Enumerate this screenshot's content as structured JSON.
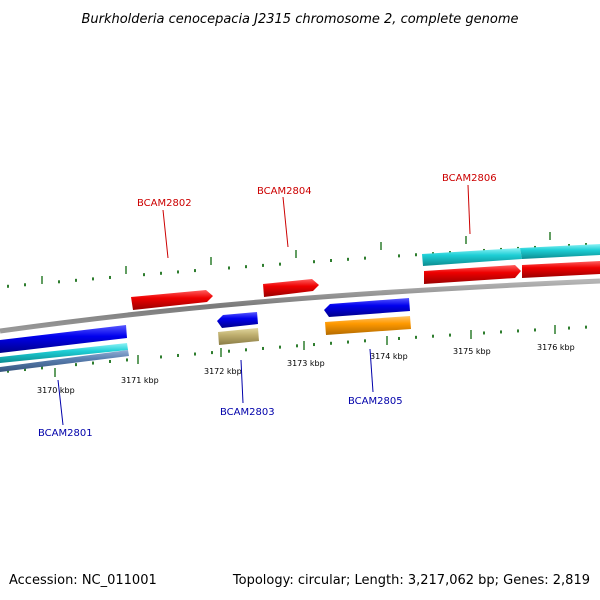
{
  "title": "Burkholderia cenocepacia J2315 chromosome 2, complete genome",
  "footer": {
    "accession": "Accession: NC_011001",
    "summary": "Topology: circular; Length: 3,217,062 bp; Genes: 2,819"
  },
  "colors": {
    "forward_gene_label": "#cc0000",
    "reverse_gene_label": "#0000aa",
    "tick": "#2e7d2e",
    "backbone": "#888888",
    "red_feature": "#ee0000",
    "blue_feature": "#0000ee",
    "cyan_feature": "#1ecfd6",
    "orange_feature": "#ff9900",
    "khaki_feature": "#c0b070",
    "steel_feature": "#5a7fb0"
  },
  "scale_ticks": [
    "3170 kbp",
    "3171 kbp",
    "3172 kbp",
    "3173 kbp",
    "3174 kbp",
    "3175 kbp",
    "3176 kbp"
  ],
  "genes_forward": [
    "BCAM2802",
    "BCAM2804",
    "BCAM2806"
  ],
  "genes_reverse": [
    "BCAM2801",
    "BCAM2803",
    "BCAM2805"
  ]
}
